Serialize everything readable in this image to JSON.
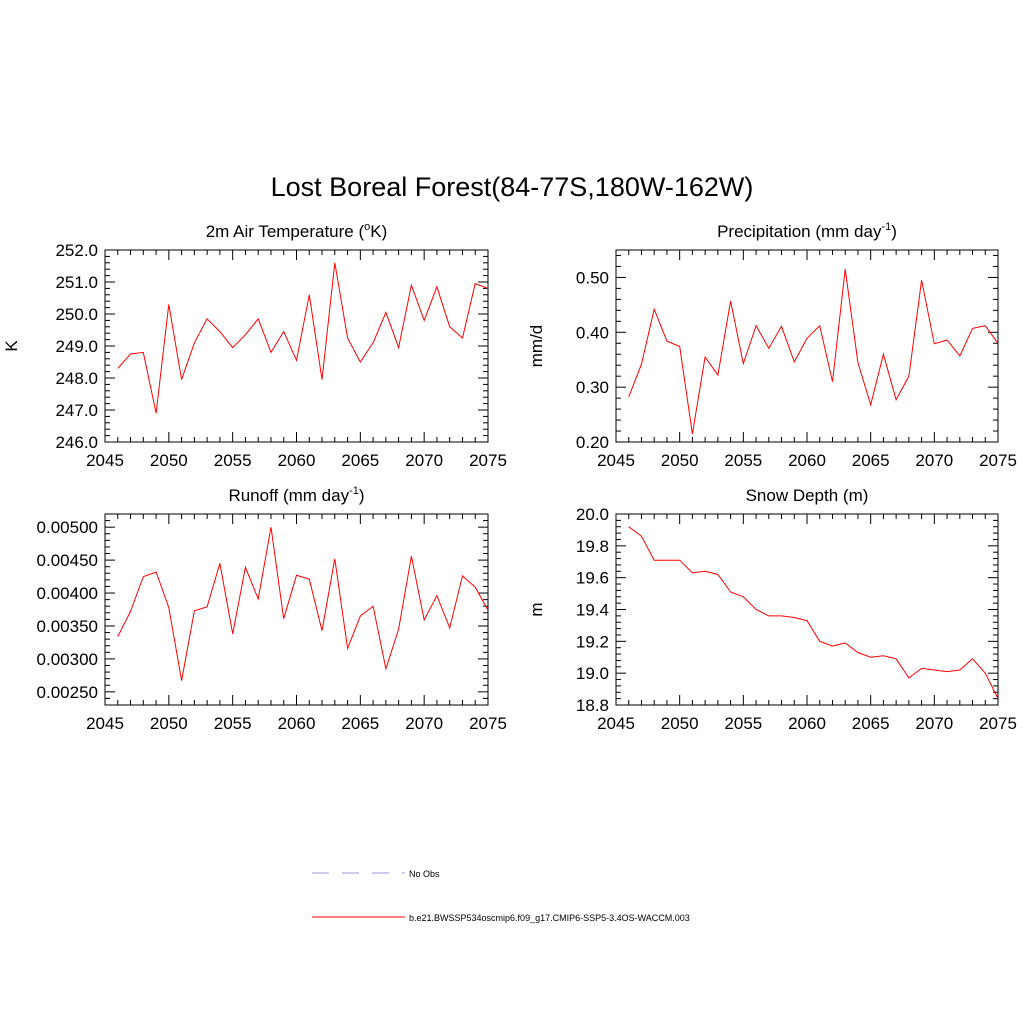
{
  "figure": {
    "title": "Lost Boreal Forest(84-77S,180W-162W)"
  },
  "chart_data": [
    {
      "type": "line",
      "title": "2m Air Temperature (",
      "title_sup": "o",
      "title_tail": "K)",
      "xlabel": "",
      "ylabel": "K",
      "xlim": [
        2045,
        2075
      ],
      "ylim": [
        246.0,
        252.0
      ],
      "xticks": [
        2045,
        2050,
        2055,
        2060,
        2065,
        2070,
        2075
      ],
      "yticks": [
        "246.0",
        "247.0",
        "248.0",
        "249.0",
        "250.0",
        "251.0",
        "252.0"
      ],
      "ytick_values": [
        246.0,
        247.0,
        248.0,
        249.0,
        250.0,
        251.0,
        252.0
      ],
      "grid": false,
      "series": [
        {
          "name": "b.e21.BWSSP534oscmip6.f09_g17.CMIP6-SSP5-3.4OS-WACCM.003",
          "color": "#ff0000",
          "x": [
            2046,
            2047,
            2048,
            2049,
            2050,
            2051,
            2052,
            2053,
            2054,
            2055,
            2056,
            2057,
            2058,
            2059,
            2060,
            2061,
            2062,
            2063,
            2064,
            2065,
            2066,
            2067,
            2068,
            2069,
            2070,
            2071,
            2072,
            2073,
            2074,
            2075
          ],
          "values": [
            248.3,
            248.75,
            248.8,
            246.9,
            250.3,
            247.95,
            249.1,
            249.85,
            249.45,
            248.95,
            249.35,
            249.85,
            248.8,
            249.45,
            248.55,
            250.6,
            247.95,
            251.6,
            249.25,
            248.5,
            249.1,
            250.05,
            248.95,
            250.9,
            249.8,
            250.85,
            249.6,
            249.25,
            250.95,
            250.8
          ]
        }
      ]
    },
    {
      "type": "line",
      "title": "Precipitation (mm day",
      "title_sup": "-1",
      "title_tail": ")",
      "xlabel": "",
      "ylabel": "mm/d",
      "xlim": [
        2045,
        2075
      ],
      "ylim": [
        0.2,
        0.55
      ],
      "xticks": [
        2045,
        2050,
        2055,
        2060,
        2065,
        2070,
        2075
      ],
      "yticks": [
        "0.20",
        "0.30",
        "0.40",
        "0.50"
      ],
      "ytick_values": [
        0.2,
        0.3,
        0.4,
        0.5
      ],
      "grid": false,
      "series": [
        {
          "name": "b.e21.BWSSP534oscmip6.f09_g17.CMIP6-SSP5-3.4OS-WACCM.003",
          "color": "#ff0000",
          "x": [
            2046,
            2047,
            2048,
            2049,
            2050,
            2051,
            2052,
            2053,
            2054,
            2055,
            2056,
            2057,
            2058,
            2059,
            2060,
            2061,
            2062,
            2063,
            2064,
            2065,
            2066,
            2067,
            2068,
            2069,
            2070,
            2071,
            2072,
            2073,
            2074,
            2075
          ],
          "values": [
            0.282,
            0.342,
            0.442,
            0.384,
            0.374,
            0.215,
            0.355,
            0.322,
            0.457,
            0.343,
            0.412,
            0.371,
            0.411,
            0.346,
            0.389,
            0.412,
            0.31,
            0.515,
            0.345,
            0.268,
            0.36,
            0.277,
            0.32,
            0.495,
            0.379,
            0.386,
            0.357,
            0.407,
            0.412,
            0.38
          ]
        }
      ]
    },
    {
      "type": "line",
      "title": "Runoff (mm day",
      "title_sup": "-1",
      "title_tail": ")",
      "xlabel": "",
      "ylabel": "",
      "xlim": [
        2045,
        2075
      ],
      "ylim": [
        0.0023,
        0.0052
      ],
      "xticks": [
        2045,
        2050,
        2055,
        2060,
        2065,
        2070,
        2075
      ],
      "yticks": [
        "0.00250",
        "0.00300",
        "0.00350",
        "0.00400",
        "0.00450",
        "0.00500"
      ],
      "ytick_values": [
        0.0025,
        0.003,
        0.0035,
        0.004,
        0.0045,
        0.005
      ],
      "grid": false,
      "series": [
        {
          "name": "b.e21.BWSSP534oscmip6.f09_g17.CMIP6-SSP5-3.4OS-WACCM.003",
          "color": "#ff0000",
          "x": [
            2046,
            2047,
            2048,
            2049,
            2050,
            2051,
            2052,
            2053,
            2054,
            2055,
            2056,
            2057,
            2058,
            2059,
            2060,
            2061,
            2062,
            2063,
            2064,
            2065,
            2066,
            2067,
            2068,
            2069,
            2070,
            2071,
            2072,
            2073,
            2074,
            2075
          ],
          "values": [
            0.00334,
            0.00372,
            0.00425,
            0.00432,
            0.00378,
            0.00267,
            0.00373,
            0.00379,
            0.00445,
            0.00338,
            0.00439,
            0.00391,
            0.005,
            0.00361,
            0.00427,
            0.00421,
            0.00343,
            0.00452,
            0.00316,
            0.00365,
            0.0038,
            0.00285,
            0.00345,
            0.00456,
            0.00359,
            0.00396,
            0.00347,
            0.00426,
            0.00409,
            0.00374
          ]
        }
      ]
    },
    {
      "type": "line",
      "title": "Snow Depth (m)",
      "title_sup": "",
      "title_tail": "",
      "xlabel": "",
      "ylabel": "m",
      "xlim": [
        2045,
        2075
      ],
      "ylim": [
        18.8,
        20.0
      ],
      "xticks": [
        2045,
        2050,
        2055,
        2060,
        2065,
        2070,
        2075
      ],
      "yticks": [
        "18.8",
        "19.0",
        "19.2",
        "19.4",
        "19.6",
        "19.8",
        "20.0"
      ],
      "ytick_values": [
        18.8,
        19.0,
        19.2,
        19.4,
        19.6,
        19.8,
        20.0
      ],
      "grid": false,
      "series": [
        {
          "name": "b.e21.BWSSP534oscmip6.f09_g17.CMIP6-SSP5-3.4OS-WACCM.003",
          "color": "#ff0000",
          "x": [
            2046,
            2047,
            2048,
            2049,
            2050,
            2051,
            2052,
            2053,
            2054,
            2055,
            2056,
            2057,
            2058,
            2059,
            2060,
            2061,
            2062,
            2063,
            2064,
            2065,
            2066,
            2067,
            2068,
            2069,
            2070,
            2071,
            2072,
            2073,
            2074,
            2075
          ],
          "values": [
            19.92,
            19.86,
            19.71,
            19.71,
            19.71,
            19.63,
            19.64,
            19.62,
            19.51,
            19.48,
            19.4,
            19.36,
            19.36,
            19.35,
            19.33,
            19.2,
            19.17,
            19.19,
            19.13,
            19.1,
            19.11,
            19.09,
            18.97,
            19.03,
            19.02,
            19.01,
            19.02,
            19.09,
            19.0,
            18.84
          ]
        }
      ]
    }
  ],
  "legend": {
    "entries": [
      {
        "label": "No Obs",
        "style": "dashed",
        "color": "#9999dd"
      },
      {
        "label": "b.e21.BWSSP534oscmip6.f09_g17.CMIP6-SSP5-3.4OS-WACCM.003",
        "style": "solid",
        "color": "#ff0000"
      }
    ]
  }
}
